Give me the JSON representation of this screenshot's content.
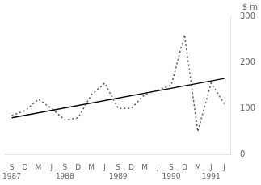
{
  "chart_data": {
    "type": "line",
    "ylabel": "$ m",
    "categories": [
      "S",
      "D",
      "M",
      "J",
      "S",
      "D",
      "M",
      "J",
      "S",
      "D",
      "M",
      "J",
      "S",
      "D",
      "M",
      "J",
      "J"
    ],
    "series": [
      {
        "color": "#555555",
        "line_style": "dotted",
        "values": [
          85,
          95,
          120,
          100,
          75,
          80,
          130,
          155,
          100,
          100,
          130,
          140,
          150,
          260,
          50,
          155,
          110
        ]
      },
      {
        "color": "#000000",
        "line_style": "solid",
        "values": [
          80,
          null,
          null,
          null,
          null,
          null,
          null,
          null,
          null,
          null,
          null,
          null,
          null,
          null,
          null,
          null,
          165
        ]
      }
    ],
    "annotations": [
      {
        "text": "1987",
        "index": 0
      },
      {
        "text": "1988",
        "index": 4
      },
      {
        "text": "1989",
        "index": 8
      },
      {
        "text": "1990",
        "index": 12
      },
      {
        "text": "1991",
        "index": 15
      }
    ],
    "ylim": [
      0,
      300
    ],
    "yticks": [
      0,
      100,
      200,
      300
    ],
    "grid": false
  }
}
